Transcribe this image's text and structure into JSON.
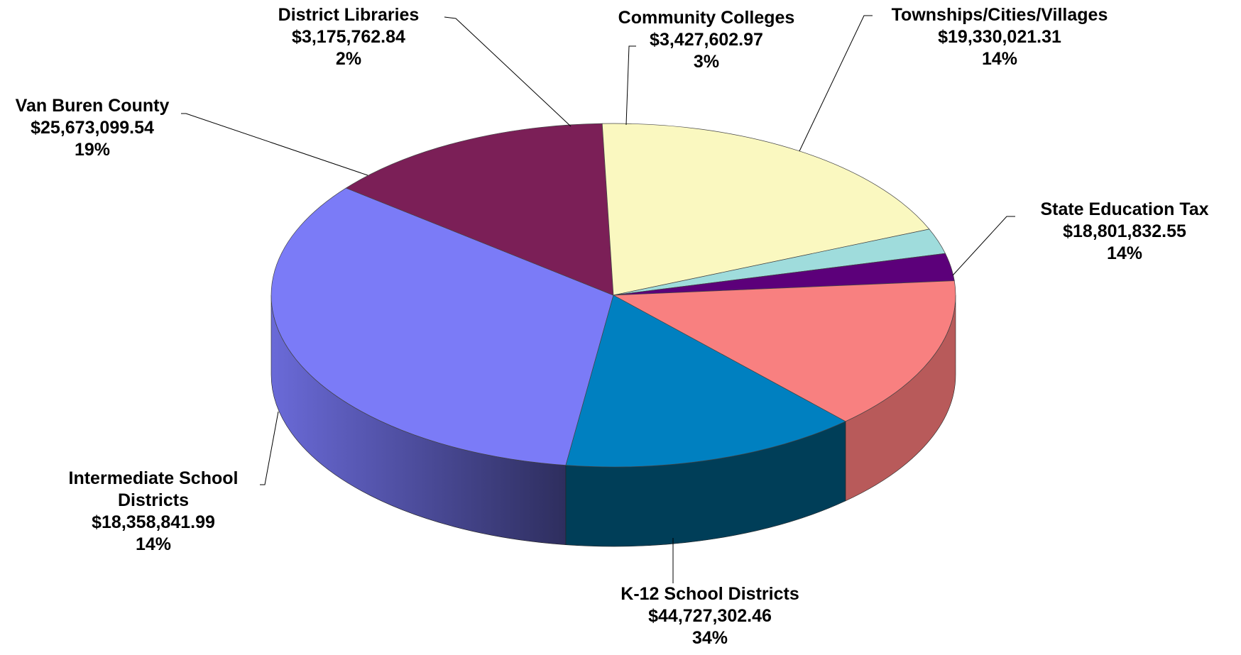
{
  "chart_data": {
    "type": "pie",
    "style": "3d",
    "title": "",
    "slices": [
      {
        "label": "K-12 School Districts",
        "value": 44727302.46,
        "value_text": "$44,727,302.46",
        "percent": "34%",
        "color": "#7b7bf7"
      },
      {
        "label": "Intermediate School Districts",
        "label_lines": [
          "Intermediate School",
          "Districts"
        ],
        "value": 18358841.99,
        "value_text": "$18,358,841.99",
        "percent": "14%",
        "color": "#7b1f57"
      },
      {
        "label": "Van Buren County",
        "value": 25673099.54,
        "value_text": "$25,673,099.54",
        "percent": "19%",
        "color": "#faf8c0"
      },
      {
        "label": "District Libraries",
        "value": 3175762.84,
        "value_text": "$3,175,762.84",
        "percent": "2%",
        "color": "#9fdcdc"
      },
      {
        "label": "Community Colleges",
        "value": 3427602.97,
        "value_text": "$3,427,602.97",
        "percent": "3%",
        "color": "#5c007a"
      },
      {
        "label": "Townships/Cities/Villages",
        "value": 19330021.31,
        "value_text": "$19,330,021.31",
        "percent": "14%",
        "color": "#f88080"
      },
      {
        "label": "State Education Tax",
        "value": 18801832.55,
        "value_text": "$18,801,832.55",
        "percent": "14%",
        "color": "#0080c0"
      }
    ]
  }
}
